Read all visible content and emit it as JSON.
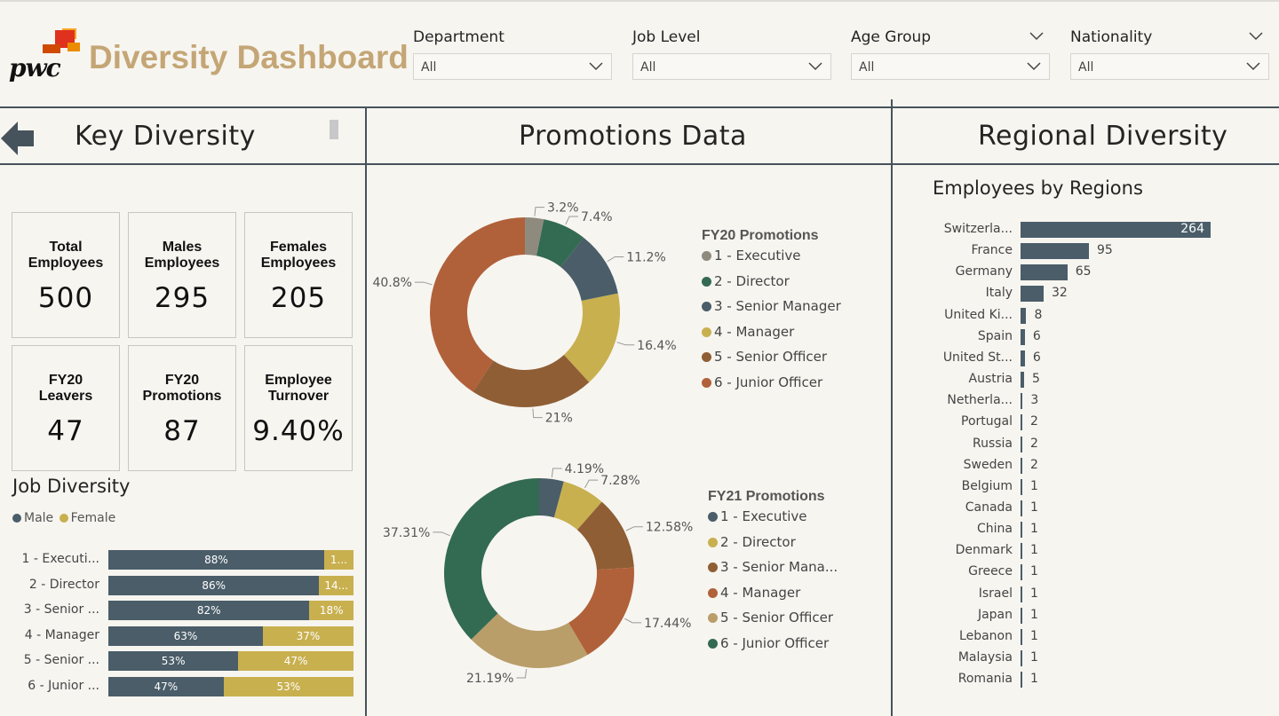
{
  "header": {
    "logo_text": "pwc",
    "title": "Diversity Dashboard"
  },
  "filters": [
    {
      "label": "Department",
      "value": "All"
    },
    {
      "label": "Job Level",
      "value": "All"
    },
    {
      "label": "Age Group",
      "value": "All"
    },
    {
      "label": "Nationality",
      "value": "All"
    }
  ],
  "sections": {
    "key": "Key Diversity",
    "promotions": "Promotions Data",
    "regional": "Regional Diversity"
  },
  "kpis": [
    {
      "label": "Total Employees",
      "value": "500"
    },
    {
      "label": "Males Employees",
      "value": "295"
    },
    {
      "label": "Females Employees",
      "value": "205"
    },
    {
      "label": "FY20 Leavers",
      "value": "47"
    },
    {
      "label": "FY20 Promotions",
      "value": "87"
    },
    {
      "label": "Employee Turnover",
      "value": "9.40%"
    }
  ],
  "job_diversity": {
    "title": "Job Diversity",
    "legend": [
      {
        "name": "Male",
        "color": "#4a5d69"
      },
      {
        "name": "Female",
        "color": "#c8b04f"
      }
    ]
  },
  "colors": {
    "accent": "#c4a676",
    "slate": "#4a5d69",
    "gold": "#c8b04f",
    "panel_line": "#46535c"
  },
  "chart_data": [
    {
      "type": "bar",
      "orientation": "horizontal-stacked-100",
      "categories": [
        "1 - Executi...",
        "2 - Director",
        "3 - Senior ...",
        "4 - Manager",
        "5 - Senior ...",
        "6 - Junior ..."
      ],
      "series": [
        {
          "name": "Male",
          "values": [
            88,
            86,
            82,
            63,
            53,
            47
          ],
          "labels": [
            "88%",
            "86%",
            "82%",
            "63%",
            "53%",
            "47%"
          ]
        },
        {
          "name": "Female",
          "values": [
            12,
            14,
            18,
            37,
            47,
            53
          ],
          "labels": [
            "1...",
            "14...",
            "18%",
            "37%",
            "47%",
            "53%"
          ]
        }
      ]
    },
    {
      "type": "pie",
      "title": "FY20 Promotions",
      "categories": [
        "1 - Executive",
        "2 - Director",
        "3 - Senior Manager",
        "4 - Manager",
        "5 - Senior Officer",
        "6 - Junior Officer"
      ],
      "values": [
        3.2,
        7.4,
        11.2,
        16.4,
        21,
        40.8
      ],
      "labels": [
        "3.2%",
        "7.4%",
        "11.2%",
        "16.4%",
        "21%",
        "40.8%"
      ],
      "colors": [
        "#8f8a7e",
        "#336b52",
        "#4a5d69",
        "#c8b04f",
        "#8f5e34",
        "#b0613a"
      ]
    },
    {
      "type": "pie",
      "title": "FY21 Promotions",
      "categories": [
        "1 - Executive",
        "2 - Director",
        "3 - Senior Mana...",
        "4 - Manager",
        "5 - Senior Officer",
        "6 - Junior Officer"
      ],
      "values": [
        4.19,
        7.28,
        12.58,
        17.44,
        21.19,
        37.31
      ],
      "labels": [
        "4.19%",
        "7.28%",
        "12.58%",
        "17.44%",
        "21.19%",
        "37.31%"
      ],
      "colors": [
        "#4a5d69",
        "#c8b04f",
        "#8f5e34",
        "#b0613a",
        "#b99e6a",
        "#336b52"
      ]
    },
    {
      "type": "bar",
      "orientation": "horizontal",
      "title": "Employees by Regions",
      "categories": [
        "Switzerla...",
        "France",
        "Germany",
        "Italy",
        "United Ki...",
        "Spain",
        "United St...",
        "Austria",
        "Netherla...",
        "Portugal",
        "Russia",
        "Sweden",
        "Belgium",
        "Canada",
        "China",
        "Denmark",
        "Greece",
        "Israel",
        "Japan",
        "Lebanon",
        "Malaysia",
        "Romania"
      ],
      "values": [
        264,
        95,
        65,
        32,
        8,
        6,
        6,
        5,
        3,
        2,
        2,
        2,
        1,
        1,
        1,
        1,
        1,
        1,
        1,
        1,
        1,
        1
      ]
    }
  ]
}
